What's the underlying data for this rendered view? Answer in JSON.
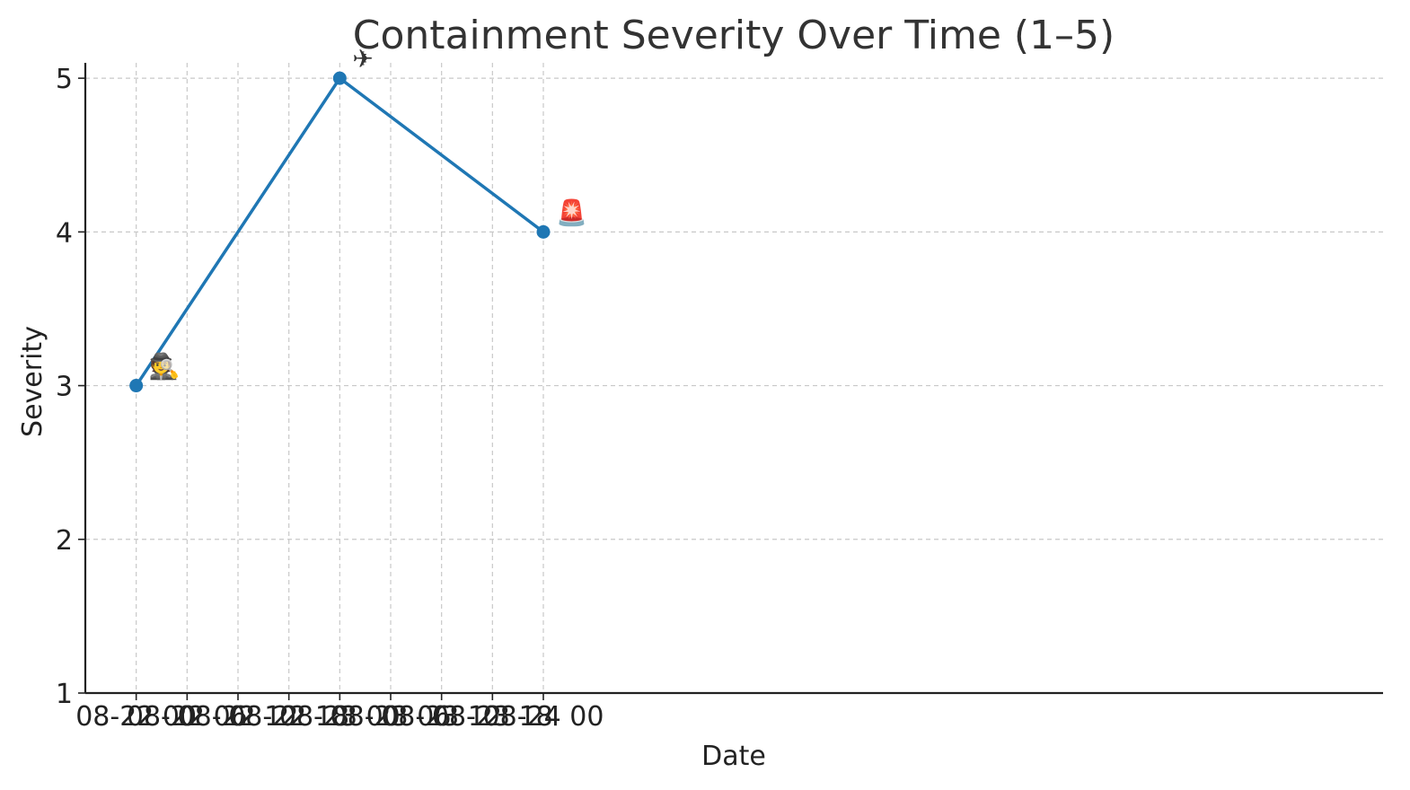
{
  "chart_data": {
    "type": "line",
    "title": "Containment Severity Over Time (1–5)",
    "xlabel": "Date",
    "ylabel": "Severity",
    "x_ticks": [
      "08-22 00",
      "08-22 06",
      "08-22 12",
      "08-22 18",
      "08-23 00",
      "08-23 06",
      "08-23 12",
      "08-23 18",
      "08-24 00"
    ],
    "y_ticks": [
      "1",
      "2",
      "3",
      "4",
      "5"
    ],
    "ylim": [
      1,
      5.1
    ],
    "xlim_hours": [
      -6,
      147
    ],
    "grid": true,
    "series": [
      {
        "color": "#1f77b4",
        "x": [
          "08-22 00",
          "08-23 00",
          "08-24 00"
        ],
        "values": [
          3,
          5,
          4
        ],
        "annotations": [
          "🕵",
          "✈",
          "🚨"
        ]
      }
    ]
  }
}
